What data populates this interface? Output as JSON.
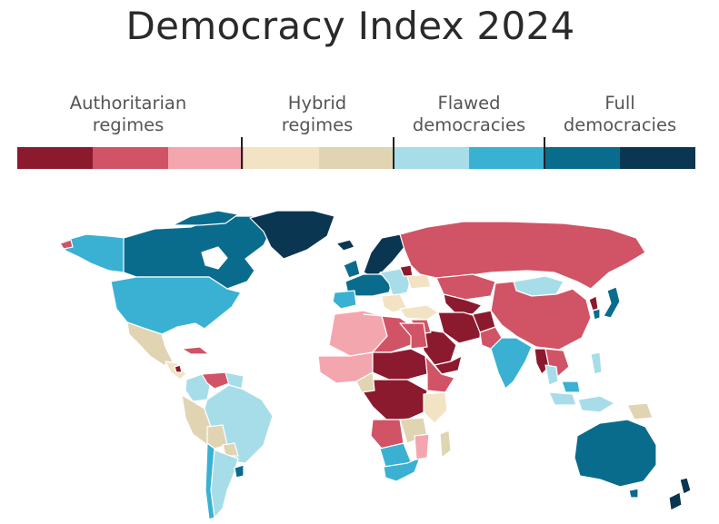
{
  "title": "Democracy Index 2024",
  "legend": {
    "categories": [
      {
        "line1": "Authoritarian",
        "line2": "regimes",
        "colors": [
          "#8b1a2e",
          "#d05466",
          "#f4a6ae"
        ]
      },
      {
        "line1": "Hybrid",
        "line2": "regimes",
        "colors": [
          "#f3e3c5",
          "#e0d4b3"
        ]
      },
      {
        "line1": "Flawed",
        "line2": "democracies",
        "colors": [
          "#a7dde9",
          "#3ab1d3"
        ]
      },
      {
        "line1": "Full",
        "line2": "democracies",
        "colors": [
          "#0a6c8d",
          "#0a3652"
        ]
      }
    ]
  },
  "colors": {
    "title": "#2a2a2a",
    "label": "#555555",
    "ocean": "#ffffff",
    "border": "#ffffff"
  }
}
